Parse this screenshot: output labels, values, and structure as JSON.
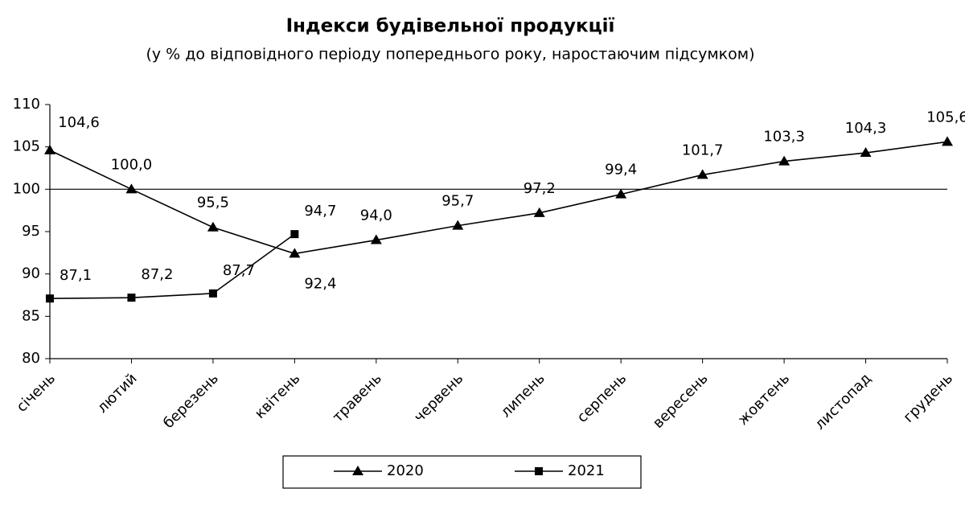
{
  "chart_data": {
    "type": "line",
    "title": "Індекси будівельної продукції",
    "subtitle": "(у % до відповідного періоду попереднього року, наростаючим підсумком)",
    "categories": [
      "січень",
      "лютий",
      "березень",
      "квітень",
      "травень",
      "червень",
      "липень",
      "серпень",
      "вересень",
      "жовтень",
      "листопад",
      "грудень"
    ],
    "series": [
      {
        "name": "2020",
        "color": "#000000",
        "marker": "triangle",
        "values": [
          104.6,
          100.0,
          95.5,
          92.4,
          94.0,
          95.7,
          97.2,
          99.4,
          101.7,
          103.3,
          104.3,
          105.6
        ],
        "value_labels": [
          "104,6",
          "100,0",
          "95,5",
          "92,4",
          "94,0",
          "95,7",
          "97,2",
          "99,4",
          "101,7",
          "103,3",
          "104,3",
          "105,6"
        ]
      },
      {
        "name": "2021",
        "color": "#000000",
        "marker": "square",
        "values": [
          87.1,
          87.2,
          87.7,
          94.7,
          null,
          null,
          null,
          null,
          null,
          null,
          null,
          null
        ],
        "value_labels": [
          "87,1",
          "87,2",
          "87,7",
          "94,7",
          null,
          null,
          null,
          null,
          null,
          null,
          null,
          null
        ]
      }
    ],
    "ylim": [
      80,
      110
    ],
    "yticks": [
      80,
      85,
      90,
      95,
      100,
      105,
      110
    ],
    "hline": 100,
    "grid": false,
    "legend": "bottom"
  }
}
